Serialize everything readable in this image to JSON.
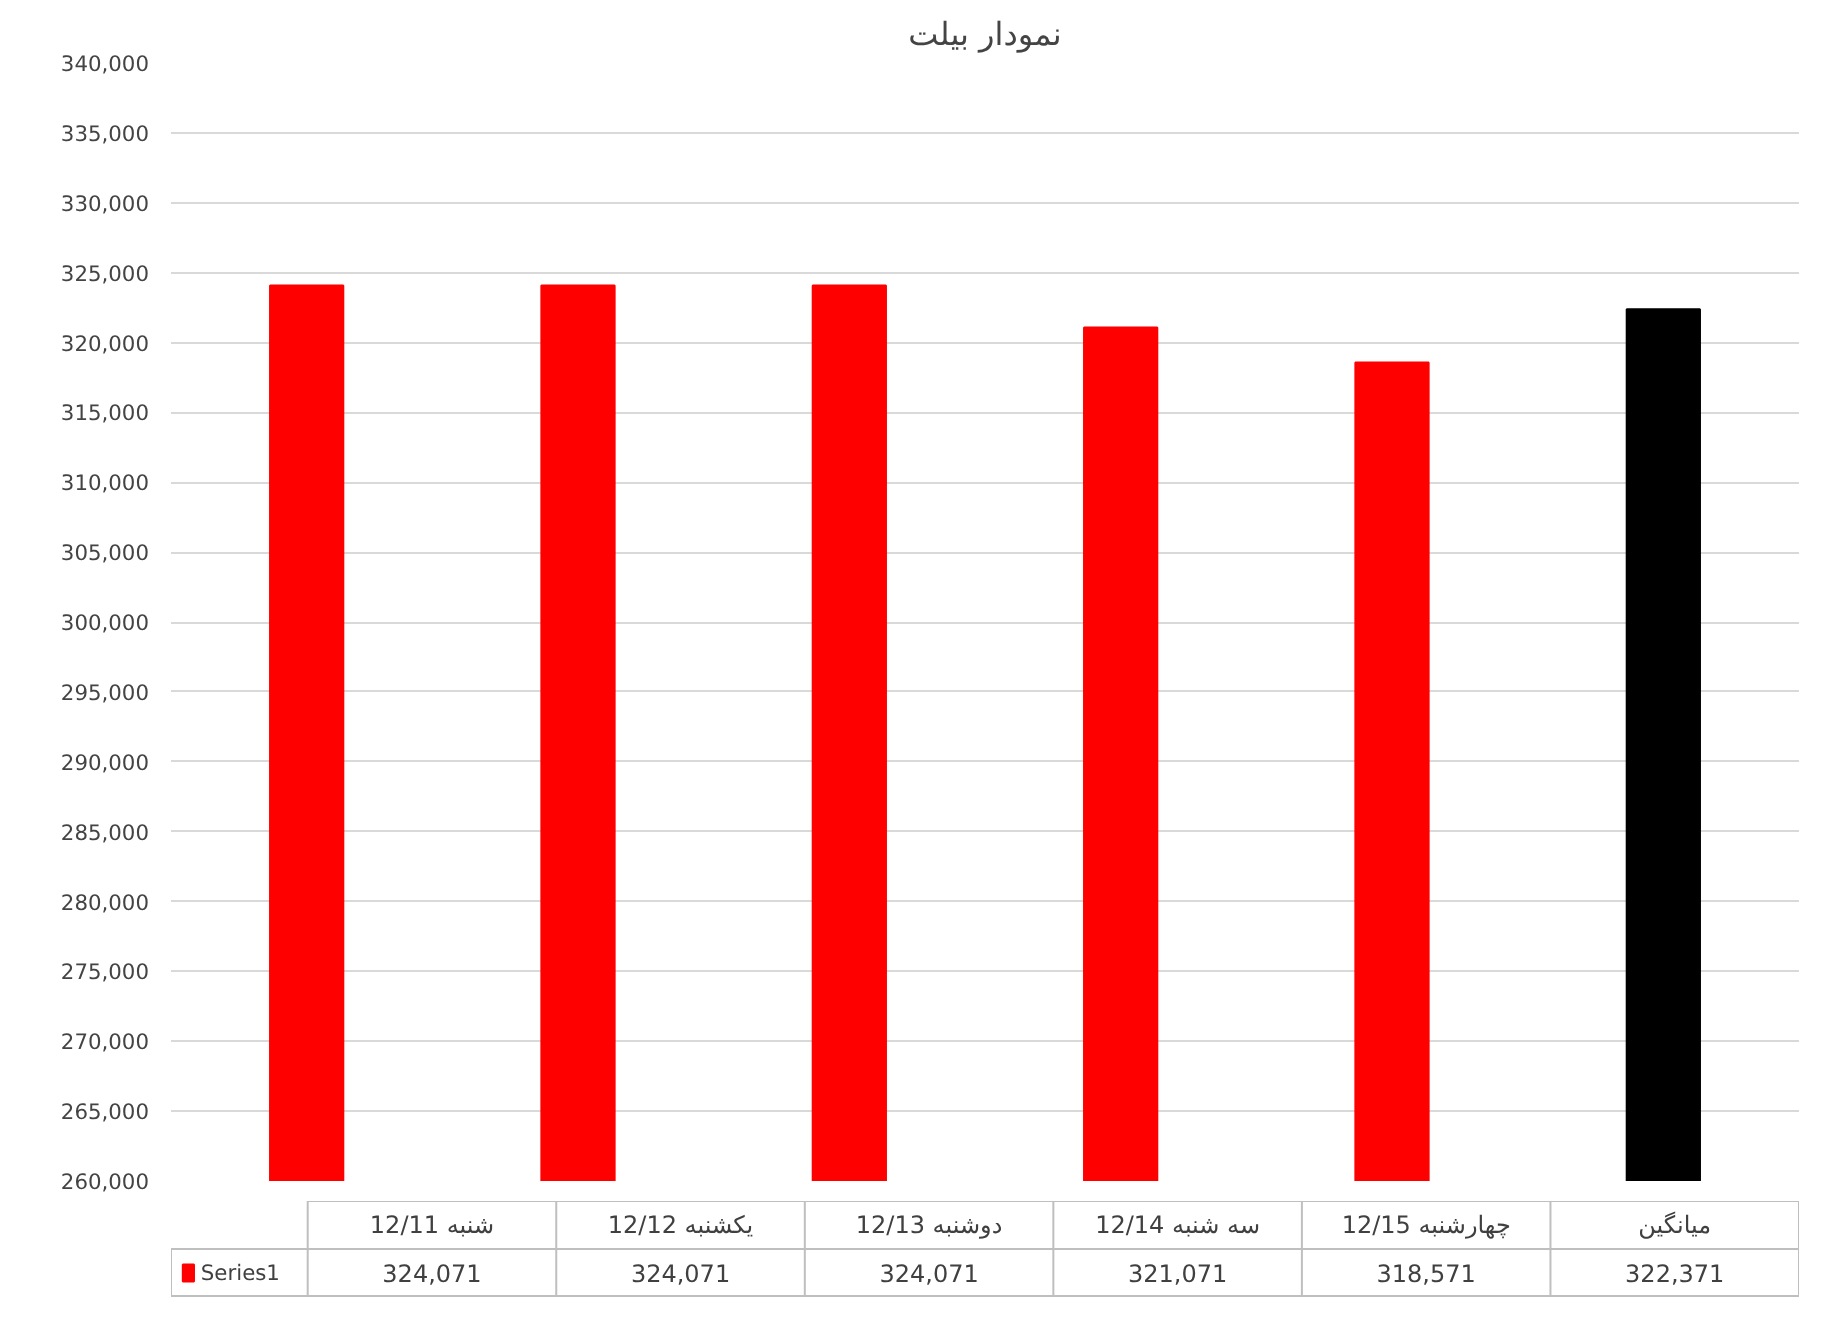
{
  "chart_data": {
    "type": "bar",
    "title": "نمودار بیلت",
    "categories": [
      "12/11 شنبه",
      "12/12 یکشنبه",
      "12/13 دوشنبه",
      "12/14 سه شنبه",
      "12/15 چهارشنبه",
      "میانگین"
    ],
    "series": [
      {
        "name": "Series1",
        "color": "#ff0000",
        "colors": [
          "#ff0000",
          "#ff0000",
          "#ff0000",
          "#ff0000",
          "#ff0000",
          "#000000"
        ],
        "values": [
          324071,
          324071,
          324071,
          321071,
          318571,
          322371
        ],
        "value_labels": [
          "324,071",
          "324,071",
          "324,071",
          "321,071",
          "318,571",
          "322,371"
        ]
      }
    ],
    "ylim": [
      260000,
      340000
    ],
    "yticks": [
      {
        "value": 260000,
        "label": "260,000"
      },
      {
        "value": 265000,
        "label": "265,000"
      },
      {
        "value": 270000,
        "label": "270,000"
      },
      {
        "value": 275000,
        "label": "275,000"
      },
      {
        "value": 280000,
        "label": "280,000"
      },
      {
        "value": 285000,
        "label": "285,000"
      },
      {
        "value": 290000,
        "label": "290,000"
      },
      {
        "value": 295000,
        "label": "295,000"
      },
      {
        "value": 300000,
        "label": "300,000"
      },
      {
        "value": 305000,
        "label": "305,000"
      },
      {
        "value": 310000,
        "label": "310,000"
      },
      {
        "value": 315000,
        "label": "315,000"
      },
      {
        "value": 320000,
        "label": "320,000"
      },
      {
        "value": 325000,
        "label": "325,000"
      },
      {
        "value": 330000,
        "label": "330,000"
      },
      {
        "value": 335000,
        "label": "335,000"
      },
      {
        "value": 340000,
        "label": "340,000"
      }
    ],
    "grid": "y",
    "legend": "bottom"
  }
}
